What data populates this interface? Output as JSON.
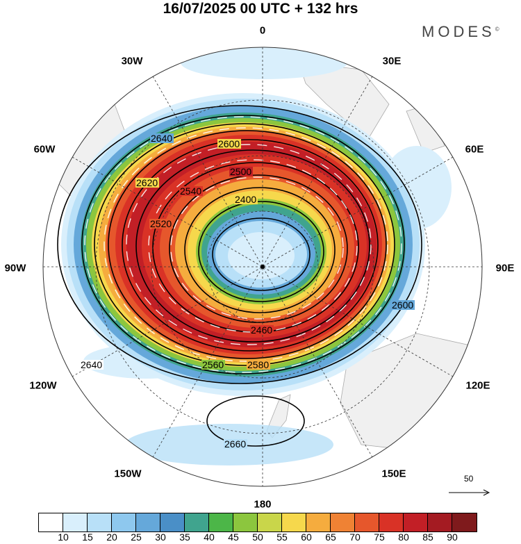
{
  "title": "16/07/2025  00 UTC  + 132 hrs",
  "brand": "MODES",
  "brand_mark": "©",
  "longitude_labels": [
    "0",
    "30E",
    "60E",
    "90E",
    "120E",
    "150E",
    "180",
    "150W",
    "120W",
    "90W",
    "60W",
    "30W"
  ],
  "contour_labels": [
    "2640",
    "2600",
    "2620",
    "2540",
    "2500",
    "2520",
    "2400",
    "2460",
    "2580",
    "2560",
    "2660"
  ],
  "scale": {
    "label": "50"
  },
  "colorbar": {
    "ticks": [
      "10",
      "15",
      "20",
      "25",
      "30",
      "35",
      "40",
      "45",
      "50",
      "55",
      "60",
      "65",
      "70",
      "75",
      "80",
      "85",
      "90"
    ],
    "colors": [
      "#ffffff",
      "#d9effc",
      "#b8e0f8",
      "#8ec8ee",
      "#65a8da",
      "#4a8fc7",
      "#40a48e",
      "#4cb648",
      "#8cc63e",
      "#c9d64a",
      "#f6d84c",
      "#f5ac3e",
      "#ef8234",
      "#e6572c",
      "#d93226",
      "#c21f26",
      "#a41b22",
      "#7f1a1c"
    ]
  }
}
